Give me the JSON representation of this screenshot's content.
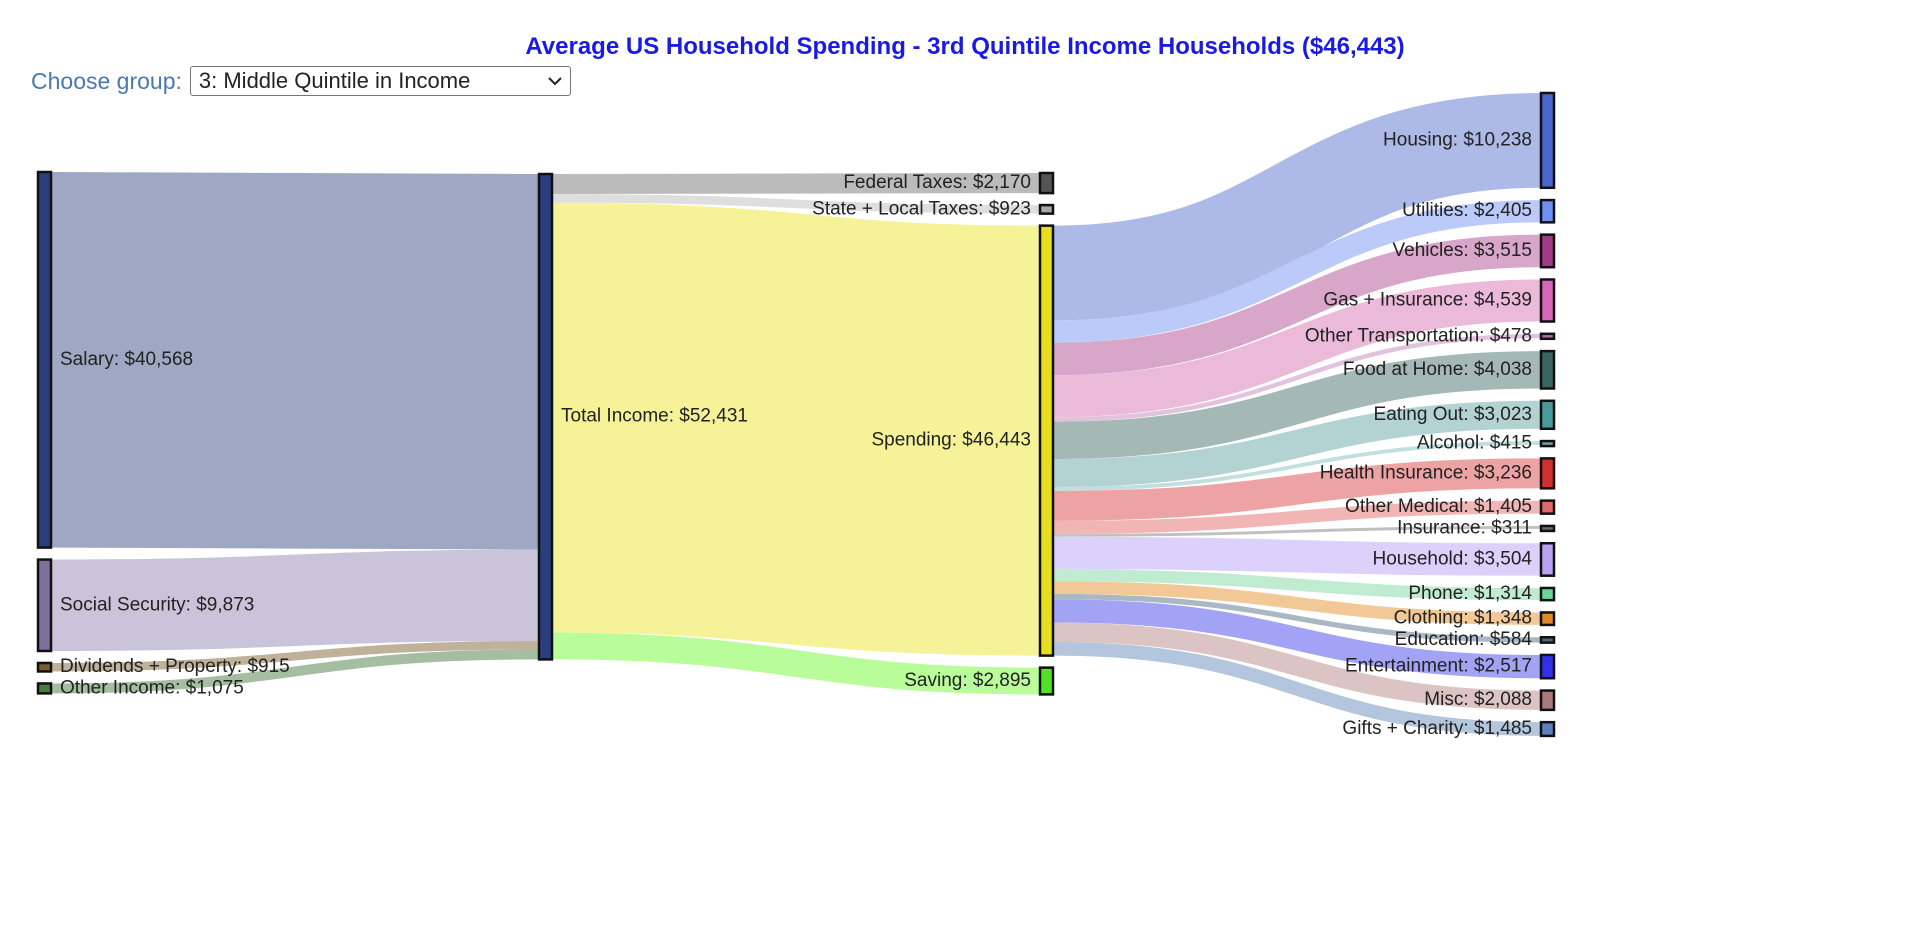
{
  "title": "Average US Household Spending - 3rd Quintile Income Households ($46,443)",
  "picker": {
    "label": "Choose group:",
    "selected": "3: Middle Quintile in Income"
  },
  "chart_data": {
    "type": "sankey",
    "nodes": [
      {
        "id": "salary",
        "label": "Salary: $40,568",
        "value": 40568,
        "color": "#2b3f80"
      },
      {
        "id": "socsec",
        "label": "Social Security: $9,873",
        "value": 9873,
        "color": "#7e6f9c"
      },
      {
        "id": "divprop",
        "label": "Dividends + Property: $915",
        "value": 915,
        "color": "#7a5c2e"
      },
      {
        "id": "otherinc",
        "label": "Other Income: $1,075",
        "value": 1075,
        "color": "#4d7a45"
      },
      {
        "id": "total",
        "label": "Total Income: $52,431",
        "value": 52431,
        "color": "#2b3f80"
      },
      {
        "id": "fedtax",
        "label": "Federal Taxes: $2,170",
        "value": 2170,
        "color": "#555555"
      },
      {
        "id": "statetax",
        "label": "State + Local Taxes: $923",
        "value": 923,
        "color": "#a6a6a6"
      },
      {
        "id": "spending",
        "label": "Spending: $46,443",
        "value": 46443,
        "color": "#e6de1f"
      },
      {
        "id": "saving",
        "label": "Saving: $2,895",
        "value": 2895,
        "color": "#55e028"
      },
      {
        "id": "housing",
        "label": "Housing: $10,238",
        "value": 10238,
        "color": "#4a66cc"
      },
      {
        "id": "utilities",
        "label": "Utilities: $2,405",
        "value": 2405,
        "color": "#6e8ef2"
      },
      {
        "id": "vehicles",
        "label": "Vehicles: $3,515",
        "value": 3515,
        "color": "#a33a85"
      },
      {
        "id": "gasins",
        "label": "Gas + Insurance: $4,539",
        "value": 4539,
        "color": "#d566b8"
      },
      {
        "id": "othertrans",
        "label": "Other Transportation: $478",
        "value": 478,
        "color": "#b06aa3"
      },
      {
        "id": "foodhome",
        "label": "Food at Home: $4,038",
        "value": 4038,
        "color": "#3a6660"
      },
      {
        "id": "eatout",
        "label": "Eating Out: $3,023",
        "value": 3023,
        "color": "#4a9a9a"
      },
      {
        "id": "alcohol",
        "label": "Alcohol: $415",
        "value": 415,
        "color": "#6aa8b0"
      },
      {
        "id": "healthins",
        "label": "Health Insurance: $3,236",
        "value": 3236,
        "color": "#d23030"
      },
      {
        "id": "othermed",
        "label": "Other Medical: $1,405",
        "value": 1405,
        "color": "#e06868"
      },
      {
        "id": "insurance",
        "label": "Insurance: $311",
        "value": 311,
        "color": "#6a6a6a"
      },
      {
        "id": "household",
        "label": "Household: $3,504",
        "value": 3504,
        "color": "#b8a2f2"
      },
      {
        "id": "phone",
        "label": "Phone: $1,314",
        "value": 1314,
        "color": "#6cd699"
      },
      {
        "id": "clothing",
        "label": "Clothing: $1,348",
        "value": 1348,
        "color": "#e08a26"
      },
      {
        "id": "education",
        "label": "Education: $584",
        "value": 584,
        "color": "#4a6a82"
      },
      {
        "id": "entertainment",
        "label": "Entertainment: $2,517",
        "value": 2517,
        "color": "#3030e6"
      },
      {
        "id": "misc",
        "label": "Misc: $2,088",
        "value": 2088,
        "color": "#a87a7a"
      },
      {
        "id": "gifts",
        "label": "Gifts + Charity: $1,485",
        "value": 1485,
        "color": "#5a82b8"
      }
    ],
    "links": [
      {
        "source": "salary",
        "target": "total",
        "value": 40568,
        "color": "#9ea8c4"
      },
      {
        "source": "socsec",
        "target": "total",
        "value": 9873,
        "color": "#c9c4da"
      },
      {
        "source": "divprop",
        "target": "total",
        "value": 915,
        "color": "#bfb19a"
      },
      {
        "source": "otherinc",
        "target": "total",
        "value": 1075,
        "color": "#a5bda0"
      },
      {
        "source": "total",
        "target": "fedtax",
        "value": 2170,
        "color": "#bbbbbb"
      },
      {
        "source": "total",
        "target": "statetax",
        "value": 923,
        "color": "#dedede"
      },
      {
        "source": "total",
        "target": "spending",
        "value": 46443,
        "color": "#f5f298"
      },
      {
        "source": "total",
        "target": "saving",
        "value": 2895,
        "color": "#b9fc9a"
      },
      {
        "source": "spending",
        "target": "housing",
        "value": 10238,
        "color": "#adb9e6"
      },
      {
        "source": "spending",
        "target": "utilities",
        "value": 2405,
        "color": "#bccafa"
      },
      {
        "source": "spending",
        "target": "vehicles",
        "value": 3515,
        "color": "#d7a6c8"
      },
      {
        "source": "spending",
        "target": "gasins",
        "value": 4539,
        "color": "#ecbad9"
      },
      {
        "source": "spending",
        "target": "othertrans",
        "value": 478,
        "color": "#e2c2dc"
      },
      {
        "source": "spending",
        "target": "foodhome",
        "value": 4038,
        "color": "#a4b8b6"
      },
      {
        "source": "spending",
        "target": "eatout",
        "value": 3023,
        "color": "#b3d3d3"
      },
      {
        "source": "spending",
        "target": "alcohol",
        "value": 415,
        "color": "#c2dfe0"
      },
      {
        "source": "spending",
        "target": "healthins",
        "value": 3236,
        "color": "#eda3a3"
      },
      {
        "source": "spending",
        "target": "othermed",
        "value": 1405,
        "color": "#f2b5b5"
      },
      {
        "source": "spending",
        "target": "insurance",
        "value": 311,
        "color": "#c0c0c0"
      },
      {
        "source": "spending",
        "target": "household",
        "value": 3504,
        "color": "#dcd1fb"
      },
      {
        "source": "spending",
        "target": "phone",
        "value": 1314,
        "color": "#bfebd0"
      },
      {
        "source": "spending",
        "target": "clothing",
        "value": 1348,
        "color": "#f1c896"
      },
      {
        "source": "spending",
        "target": "education",
        "value": 584,
        "color": "#a9b8c4"
      },
      {
        "source": "spending",
        "target": "entertainment",
        "value": 2517,
        "color": "#a3a3f5"
      },
      {
        "source": "spending",
        "target": "misc",
        "value": 2088,
        "color": "#dcc4c4"
      },
      {
        "source": "spending",
        "target": "gifts",
        "value": 1485,
        "color": "#b3c6de"
      }
    ]
  }
}
